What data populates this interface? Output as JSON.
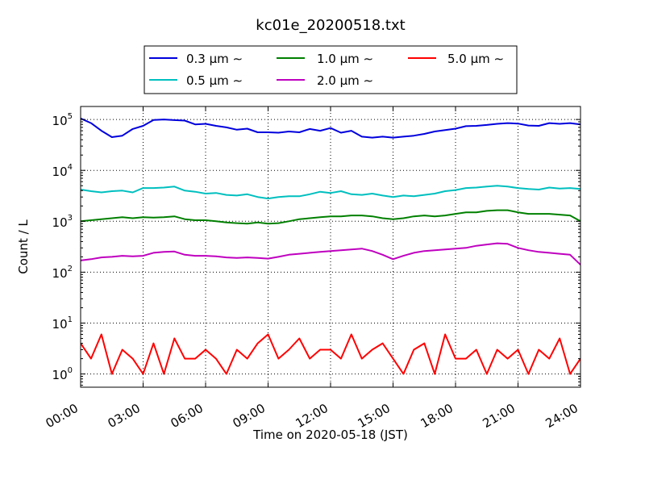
{
  "chart_data": {
    "type": "line",
    "title": "kc01e_20200518.txt",
    "xlabel": "Time on 2020-05-18 (JST)",
    "ylabel": "Count / L",
    "x_ticks": [
      "00:00",
      "03:00",
      "06:00",
      "09:00",
      "12:00",
      "15:00",
      "18:00",
      "21:00",
      "24:00"
    ],
    "y_ticks": [
      {
        "base": "10",
        "exp": "0"
      },
      {
        "base": "10",
        "exp": "1"
      },
      {
        "base": "10",
        "exp": "2"
      },
      {
        "base": "10",
        "exp": "3"
      },
      {
        "base": "10",
        "exp": "4"
      },
      {
        "base": "10",
        "exp": "5"
      }
    ],
    "xlim_hours": [
      0,
      24
    ],
    "ylim": [
      0.55,
      180000
    ],
    "yscale": "log",
    "grid": true,
    "legend_position": "top-center, above plot",
    "legend_rows": [
      [
        "0.3 μm ∼",
        "1.0 μm ∼",
        "5.0 μm ∼"
      ],
      [
        "0.5 μm ∼",
        "2.0 μm ∼"
      ]
    ],
    "series": [
      {
        "name": "0.3 μm ∼",
        "color": "#0000dd",
        "x_hours": [
          0,
          0.5,
          1,
          1.5,
          2,
          2.5,
          3,
          3.5,
          4,
          4.5,
          5,
          5.5,
          6,
          6.5,
          7,
          7.5,
          8,
          8.5,
          9,
          9.5,
          10,
          10.5,
          11,
          11.5,
          12,
          12.5,
          13,
          13.5,
          14,
          14.5,
          15,
          15.5,
          16,
          16.5,
          17,
          17.5,
          18,
          18.5,
          19,
          19.5,
          20,
          20.5,
          21,
          21.5,
          22,
          22.5,
          23,
          23.5,
          24
        ],
        "values": [
          105000,
          85000,
          60000,
          45000,
          48000,
          65000,
          75000,
          98000,
          100000,
          97000,
          95000,
          80000,
          82000,
          75000,
          70000,
          63000,
          66000,
          56000,
          56000,
          55000,
          58000,
          56000,
          65000,
          60000,
          68000,
          55000,
          60000,
          46000,
          44000,
          46000,
          44000,
          46000,
          48000,
          52000,
          58000,
          62000,
          66000,
          74000,
          75000,
          78000,
          82000,
          85000,
          83000,
          76000,
          75000,
          85000,
          82000,
          85000,
          80000
        ]
      },
      {
        "name": "0.5 μm ∼",
        "color": "#00bfbf",
        "x_hours": [
          0,
          0.5,
          1,
          1.5,
          2,
          2.5,
          3,
          3.5,
          4,
          4.5,
          5,
          5.5,
          6,
          6.5,
          7,
          7.5,
          8,
          8.5,
          9,
          9.5,
          10,
          10.5,
          11,
          11.5,
          12,
          12.5,
          13,
          13.5,
          14,
          14.5,
          15,
          15.5,
          16,
          16.5,
          17,
          17.5,
          18,
          18.5,
          19,
          19.5,
          20,
          20.5,
          21,
          21.5,
          22,
          22.5,
          23,
          23.5,
          24
        ],
        "values": [
          4200,
          3900,
          3700,
          3900,
          4000,
          3700,
          4500,
          4500,
          4600,
          4800,
          4000,
          3800,
          3500,
          3600,
          3300,
          3200,
          3400,
          3000,
          2800,
          3000,
          3100,
          3100,
          3400,
          3800,
          3600,
          3900,
          3400,
          3300,
          3500,
          3200,
          3000,
          3200,
          3100,
          3300,
          3500,
          3900,
          4100,
          4500,
          4600,
          4800,
          5000,
          4800,
          4500,
          4300,
          4200,
          4600,
          4400,
          4500,
          4300
        ]
      },
      {
        "name": "1.0 μm ∼",
        "color": "#008000",
        "x_hours": [
          0,
          0.5,
          1,
          1.5,
          2,
          2.5,
          3,
          3.5,
          4,
          4.5,
          5,
          5.5,
          6,
          6.5,
          7,
          7.5,
          8,
          8.5,
          9,
          9.5,
          10,
          10.5,
          11,
          11.5,
          12,
          12.5,
          13,
          13.5,
          14,
          14.5,
          15,
          15.5,
          16,
          16.5,
          17,
          17.5,
          18,
          18.5,
          19,
          19.5,
          20,
          20.5,
          21,
          21.5,
          22,
          22.5,
          23,
          23.5,
          24
        ],
        "values": [
          1000,
          1050,
          1100,
          1150,
          1200,
          1150,
          1200,
          1180,
          1200,
          1250,
          1100,
          1050,
          1050,
          1000,
          950,
          920,
          900,
          950,
          900,
          920,
          1000,
          1100,
          1150,
          1200,
          1250,
          1250,
          1300,
          1300,
          1250,
          1150,
          1100,
          1150,
          1250,
          1300,
          1250,
          1300,
          1400,
          1500,
          1500,
          1600,
          1650,
          1650,
          1500,
          1400,
          1400,
          1400,
          1350,
          1300,
          1000
        ]
      },
      {
        "name": "2.0 μm ∼",
        "color": "#bf00bf",
        "x_hours": [
          0,
          0.5,
          1,
          1.5,
          2,
          2.5,
          3,
          3.5,
          4,
          4.5,
          5,
          5.5,
          6,
          6.5,
          7,
          7.5,
          8,
          8.5,
          9,
          9.5,
          10,
          10.5,
          11,
          11.5,
          12,
          12.5,
          13,
          13.5,
          14,
          14.5,
          15,
          15.5,
          16,
          16.5,
          17,
          17.5,
          18,
          18.5,
          19,
          19.5,
          20,
          20.5,
          21,
          21.5,
          22,
          22.5,
          23,
          23.5,
          24
        ],
        "values": [
          170,
          180,
          195,
          200,
          210,
          205,
          210,
          240,
          250,
          255,
          220,
          210,
          210,
          205,
          195,
          190,
          195,
          190,
          185,
          200,
          220,
          230,
          240,
          250,
          260,
          270,
          280,
          290,
          260,
          220,
          180,
          210,
          240,
          260,
          270,
          280,
          290,
          300,
          330,
          350,
          370,
          360,
          300,
          270,
          250,
          240,
          230,
          220,
          140
        ]
      },
      {
        "name": "5.0 μm ∼",
        "color": "#ff0000",
        "x_hours": [
          0,
          0.5,
          1,
          1.5,
          2,
          2.5,
          3,
          3.5,
          4,
          4.5,
          5,
          5.5,
          6,
          6.5,
          7,
          7.5,
          8,
          8.5,
          9,
          9.5,
          10,
          10.5,
          11,
          11.5,
          12,
          12.5,
          13,
          13.5,
          14,
          14.5,
          15,
          15.5,
          16,
          16.5,
          17,
          17.5,
          18,
          18.5,
          19,
          19.5,
          20,
          20.5,
          21,
          21.5,
          22,
          22.5,
          23,
          23.5,
          24
        ],
        "values": [
          4,
          2,
          6,
          1,
          3,
          2,
          1,
          4,
          1,
          5,
          2,
          2,
          3,
          2,
          1,
          3,
          2,
          4,
          6,
          2,
          3,
          5,
          2,
          3,
          3,
          2,
          6,
          2,
          3,
          4,
          2,
          1,
          3,
          4,
          1,
          6,
          2,
          2,
          3,
          1,
          3,
          2,
          3,
          1,
          3,
          2,
          5,
          1,
          2
        ]
      }
    ]
  }
}
